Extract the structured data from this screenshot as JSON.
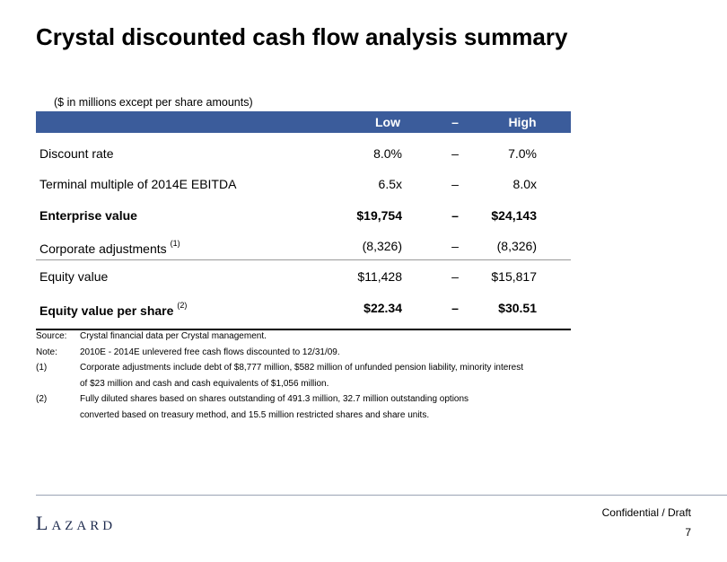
{
  "title": "Crystal discounted cash flow analysis summary",
  "units_note": "($ in millions except per share amounts)",
  "table": {
    "header": {
      "low": "Low",
      "dash": "–",
      "high": "High"
    },
    "rows": [
      {
        "label": "Discount rate",
        "low": "8.0%",
        "dash": "–",
        "high": "7.0%",
        "bold": false
      },
      {
        "label": "Terminal multiple of 2014E EBITDA",
        "low": "6.5x",
        "dash": "–",
        "high": "8.0x",
        "bold": false
      },
      {
        "label": "Enterprise value",
        "low": "$19,754",
        "dash": "–",
        "high": "$24,143",
        "bold": true
      },
      {
        "label": "Corporate adjustments",
        "note": "(1)",
        "low": "(8,326)",
        "dash": "–",
        "high": "(8,326)",
        "bold": false
      },
      {
        "label": "Equity value",
        "low": "$11,428",
        "dash": "–",
        "high": "$15,817",
        "bold": false
      },
      {
        "label": "Equity value per share",
        "note": "(2)",
        "low": "$22.34",
        "dash": "–",
        "high": "$30.51",
        "bold": true
      }
    ]
  },
  "footnotes": [
    {
      "label": "Source:",
      "lines": [
        "Crystal financial data per Crystal management."
      ]
    },
    {
      "label": "Note:",
      "lines": [
        "2010E - 2014E unlevered free cash flows discounted to 12/31/09."
      ]
    },
    {
      "label": "(1)",
      "lines": [
        "Corporate adjustments include debt of $8,777 million, $582 million of unfunded pension liability, minority interest",
        "of $23 million and cash and cash equivalents of $1,056 million."
      ]
    },
    {
      "label": "(2)",
      "lines": [
        "Fully diluted shares based on shares outstanding of 491.3 million, 32.7 million outstanding options",
        "converted based on treasury method, and 15.5 million restricted shares and share units."
      ]
    }
  ],
  "footer": {
    "logo": "Lazard",
    "status": "Confidential / Draft",
    "page": "7"
  }
}
